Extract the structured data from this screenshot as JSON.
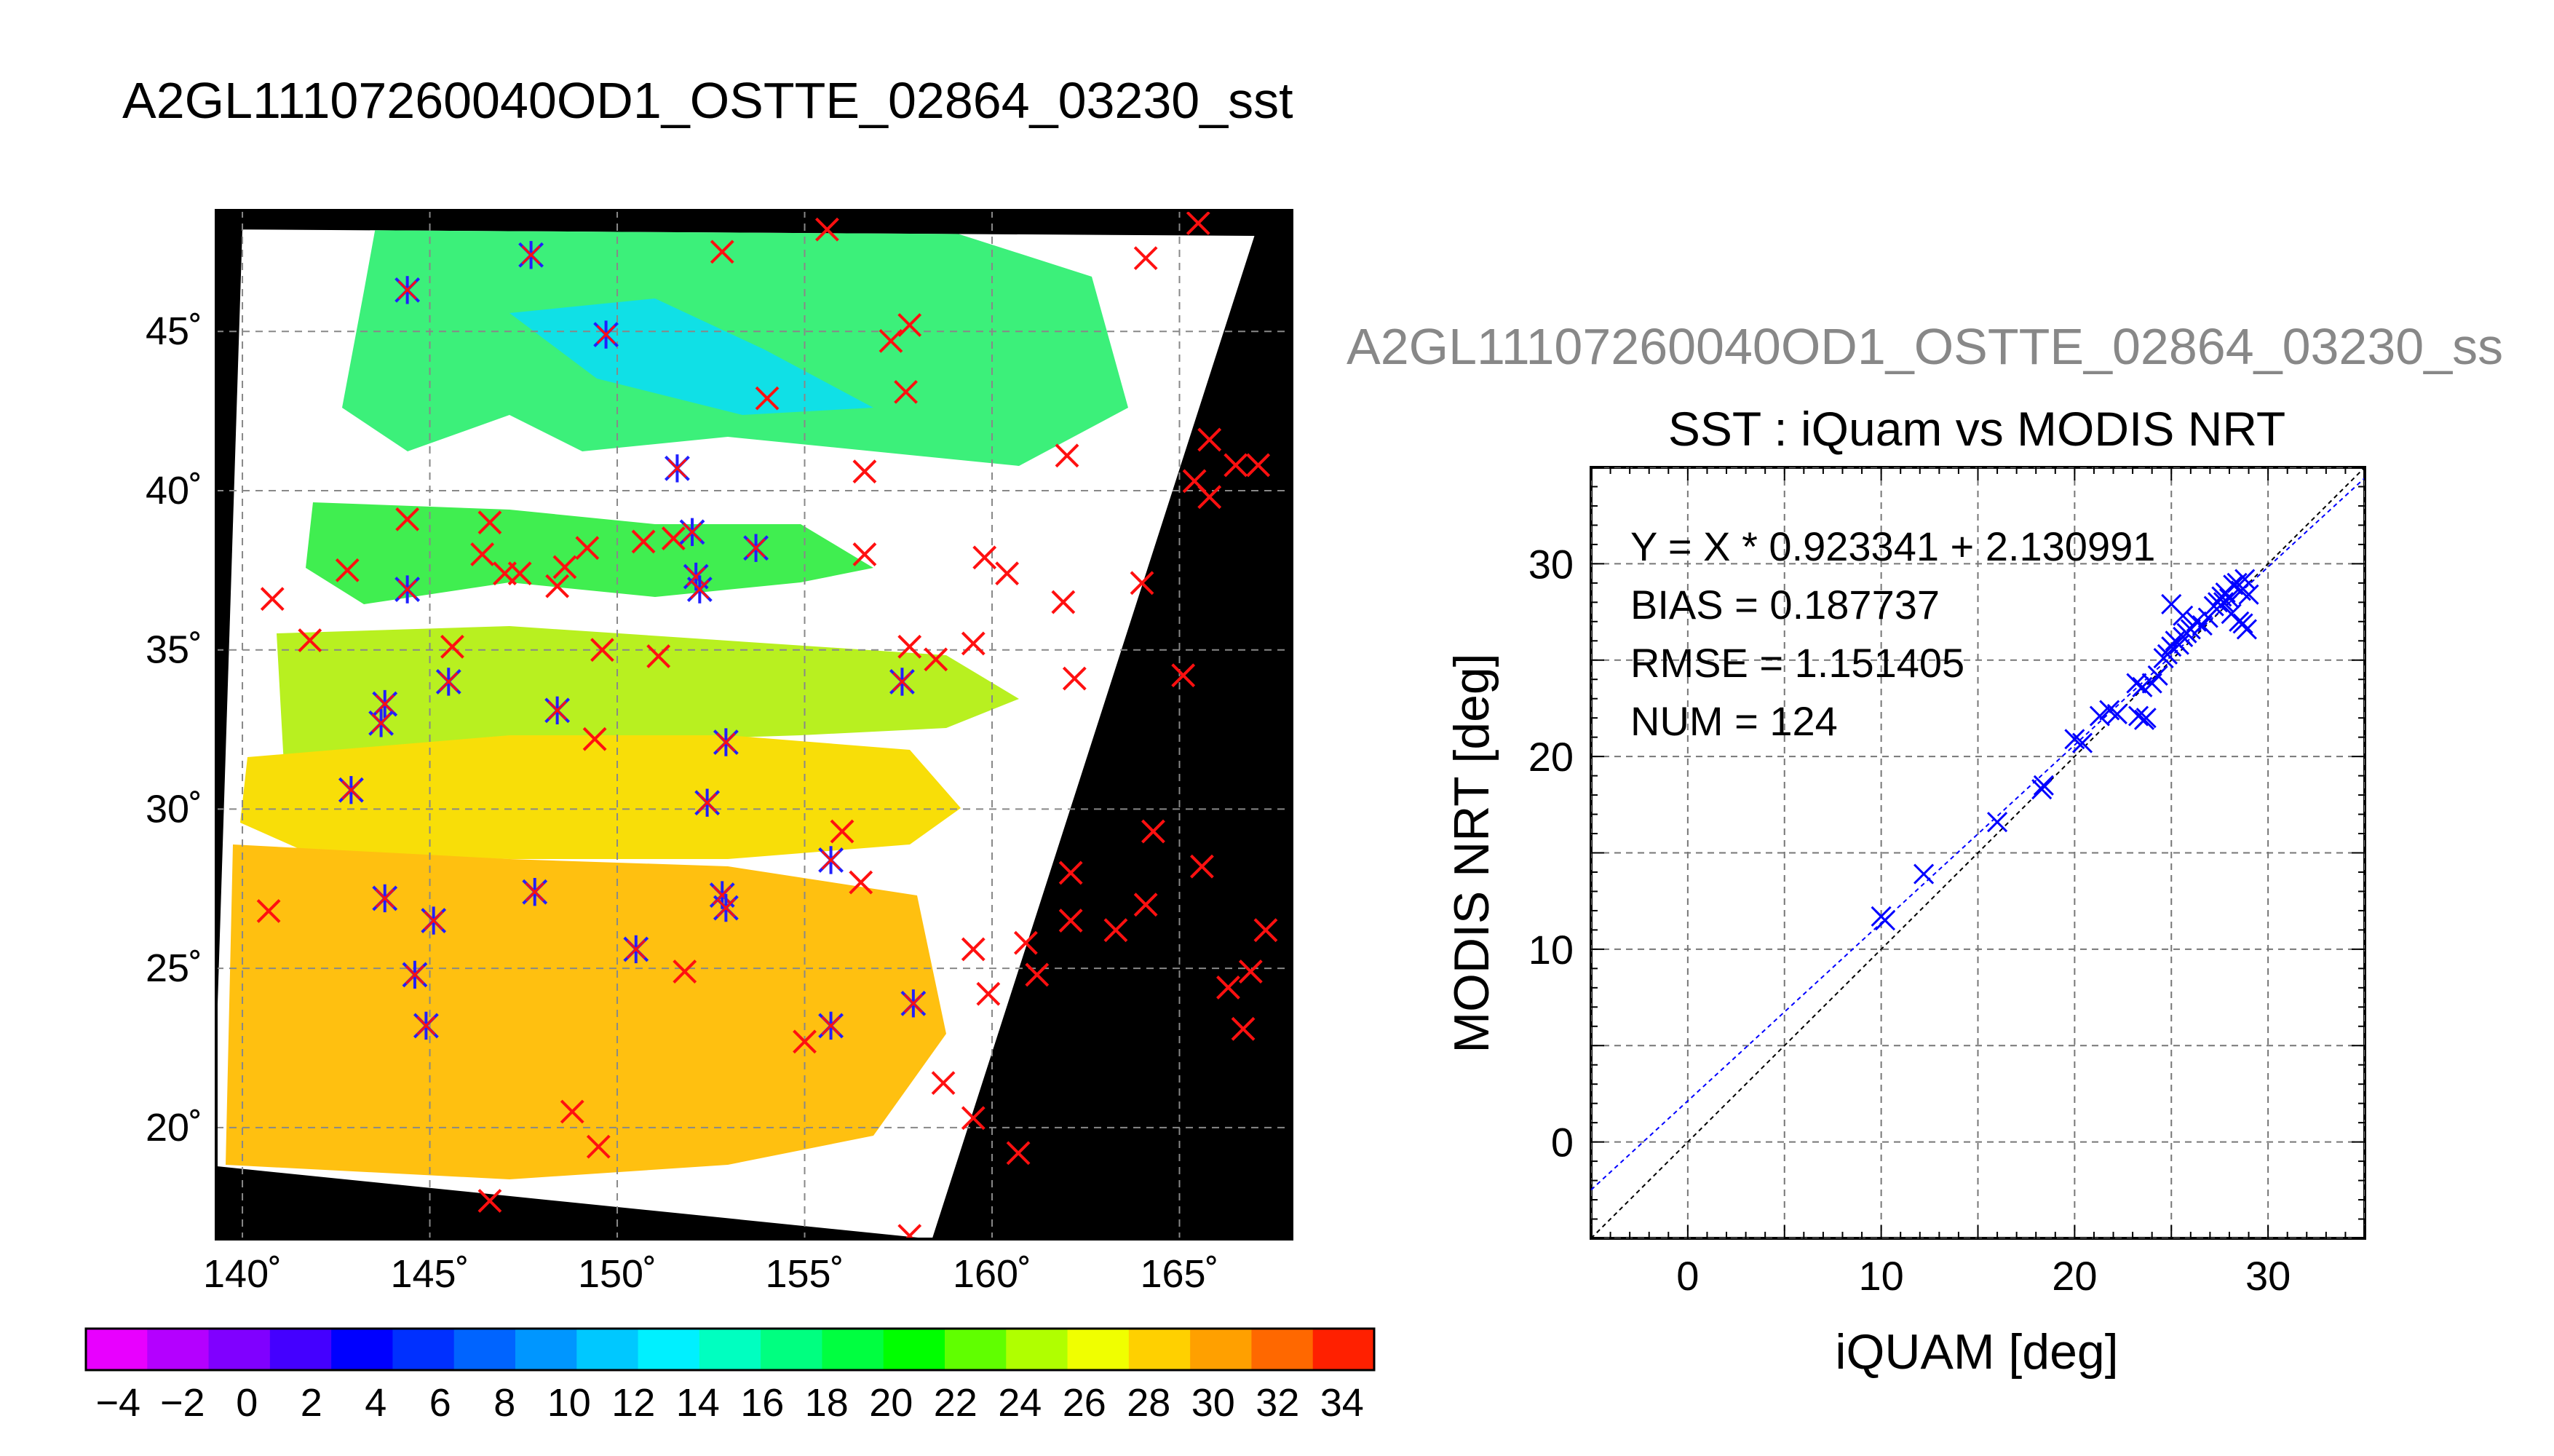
{
  "map_title": "A2GL11107260040OD1_OSTTE_02864_03230_sst",
  "scatter_title_clipped": "A2GL11107260040OD1_OSTTE_02864_03230_ss",
  "chart_data": [
    {
      "type": "map",
      "title": "A2GL11107260040OD1_OSTTE_02864_03230_sst",
      "lon_ticks": [
        140,
        145,
        150,
        155,
        160,
        165
      ],
      "lat_ticks": [
        20,
        25,
        30,
        35,
        40,
        45
      ],
      "lon_tick_labels": [
        "140˚",
        "145˚",
        "150˚",
        "155˚",
        "160˚",
        "165˚"
      ],
      "lat_tick_labels": [
        "20˚",
        "25˚",
        "30˚",
        "35˚",
        "40˚",
        "45˚"
      ],
      "xlim": [
        139.3,
        168.0
      ],
      "ylim": [
        16.5,
        48.8
      ],
      "colorbar": {
        "ticks": [
          -4,
          -2,
          0,
          2,
          4,
          6,
          8,
          10,
          12,
          14,
          16,
          18,
          20,
          22,
          24,
          26,
          28,
          30,
          32,
          34
        ],
        "range": [
          -5,
          35
        ],
        "colors": [
          "#e800ff",
          "#b400ff",
          "#8000ff",
          "#4400ff",
          "#0000ff",
          "#0030ff",
          "#0064ff",
          "#0096ff",
          "#00c8ff",
          "#00f0ff",
          "#00ffc0",
          "#00ff80",
          "#00ff40",
          "#00ff00",
          "#60ff00",
          "#b0ff00",
          "#f0ff00",
          "#ffd000",
          "#ffa000",
          "#ff6800",
          "#ff2000"
        ]
      },
      "buoys_blue_matched": [
        [
          144.4,
          46.3
        ],
        [
          147.7,
          47.4
        ],
        [
          149.7,
          44.9
        ],
        [
          151.6,
          40.7
        ],
        [
          152.0,
          38.7
        ],
        [
          152.1,
          37.3
        ],
        [
          152.2,
          36.9
        ],
        [
          144.4,
          36.9
        ],
        [
          153.7,
          38.2
        ],
        [
          143.8,
          33.3
        ],
        [
          143.7,
          32.7
        ],
        [
          145.5,
          34.0
        ],
        [
          148.4,
          33.1
        ],
        [
          152.9,
          32.1
        ],
        [
          152.4,
          30.2
        ],
        [
          157.6,
          34.0
        ],
        [
          142.9,
          30.6
        ],
        [
          143.8,
          27.2
        ],
        [
          145.1,
          26.5
        ],
        [
          147.8,
          27.4
        ],
        [
          152.8,
          27.3
        ],
        [
          152.9,
          26.9
        ],
        [
          155.7,
          28.4
        ],
        [
          150.5,
          25.6
        ],
        [
          144.6,
          24.8
        ],
        [
          144.9,
          23.2
        ],
        [
          155.7,
          23.2
        ],
        [
          157.9,
          23.9
        ]
      ],
      "buoys_red_unmatched": [
        [
          152.8,
          47.5
        ],
        [
          155.6,
          48.2
        ],
        [
          165.5,
          48.4
        ],
        [
          164.1,
          47.3
        ],
        [
          157.3,
          44.7
        ],
        [
          157.8,
          45.2
        ],
        [
          154.0,
          42.9
        ],
        [
          157.7,
          43.1
        ],
        [
          162.0,
          41.1
        ],
        [
          156.6,
          40.6
        ],
        [
          165.8,
          41.6
        ],
        [
          166.5,
          40.8
        ],
        [
          165.4,
          40.3
        ],
        [
          165.8,
          39.8
        ],
        [
          167.1,
          40.8
        ],
        [
          144.4,
          39.1
        ],
        [
          146.6,
          39.0
        ],
        [
          146.4,
          38.0
        ],
        [
          147.0,
          37.4
        ],
        [
          147.4,
          37.4
        ],
        [
          148.6,
          37.6
        ],
        [
          148.4,
          37.0
        ],
        [
          149.2,
          38.2
        ],
        [
          150.7,
          38.4
        ],
        [
          151.5,
          38.5
        ],
        [
          156.6,
          38.0
        ],
        [
          159.8,
          37.9
        ],
        [
          160.4,
          37.4
        ],
        [
          161.9,
          36.5
        ],
        [
          164.0,
          37.1
        ],
        [
          142.8,
          37.5
        ],
        [
          140.8,
          36.6
        ],
        [
          141.8,
          35.3
        ],
        [
          145.6,
          35.1
        ],
        [
          149.6,
          35.0
        ],
        [
          151.1,
          34.8
        ],
        [
          157.8,
          35.1
        ],
        [
          158.5,
          34.7
        ],
        [
          159.5,
          35.2
        ],
        [
          162.2,
          34.1
        ],
        [
          165.1,
          34.2
        ],
        [
          149.4,
          32.2
        ],
        [
          156.0,
          29.3
        ],
        [
          156.5,
          27.7
        ],
        [
          162.1,
          28.0
        ],
        [
          164.3,
          29.3
        ],
        [
          165.6,
          28.2
        ],
        [
          140.7,
          26.8
        ],
        [
          151.8,
          24.9
        ],
        [
          159.5,
          25.6
        ],
        [
          160.9,
          25.8
        ],
        [
          161.2,
          24.8
        ],
        [
          162.1,
          26.5
        ],
        [
          163.3,
          26.2
        ],
        [
          164.1,
          27.0
        ],
        [
          166.3,
          24.4
        ],
        [
          166.9,
          24.9
        ],
        [
          167.3,
          26.2
        ],
        [
          166.7,
          23.1
        ],
        [
          159.9,
          24.2
        ],
        [
          155.0,
          22.7
        ],
        [
          158.7,
          21.4
        ],
        [
          159.5,
          20.3
        ],
        [
          160.7,
          19.2
        ],
        [
          148.8,
          20.5
        ],
        [
          149.5,
          19.4
        ],
        [
          146.6,
          17.7
        ],
        [
          157.8,
          16.6
        ]
      ],
      "swath_corners": [
        [
          140.0,
          48.2
        ],
        [
          167.0,
          48.0
        ],
        [
          158.4,
          16.5
        ],
        [
          139.2,
          18.8
        ]
      ]
    },
    {
      "type": "scatter",
      "title": "SST : iQuam vs MODIS NRT",
      "xlabel": "iQUAM [deg]",
      "ylabel": "MODIS NRT [deg]",
      "xlim": [
        -5,
        35
      ],
      "ylim": [
        -5,
        35
      ],
      "x_ticks": [
        0,
        10,
        20,
        30
      ],
      "y_ticks": [
        0,
        10,
        20,
        30
      ],
      "grid": true,
      "annotations": [
        "Y = X * 0.923341 + 2.130991",
        "BIAS = 0.187737",
        "RMSE = 1.151405",
        "NUM = 124"
      ],
      "fit_line": {
        "slope": 0.923341,
        "intercept": 2.130991
      },
      "series": [
        {
          "x": [
            10.0,
            10.2,
            12.2,
            16.0,
            18.3,
            18.4,
            20.0,
            20.4,
            21.3,
            21.8,
            22.2,
            23.2,
            23.5,
            23.3,
            23.6,
            23.7,
            24.0,
            24.3,
            24.6,
            24.8,
            25.0,
            25.2,
            25.4,
            25.6,
            25.8,
            26.0,
            26.3,
            26.6,
            26.9,
            27.2,
            27.4,
            27.6,
            27.8,
            28.0,
            28.2,
            28.4,
            28.6,
            28.8,
            29.0,
            27.7,
            28.1,
            28.5,
            28.9,
            28.7,
            25.0,
            25.6
          ],
          "y": [
            11.7,
            11.5,
            13.9,
            16.6,
            18.3,
            18.5,
            20.9,
            20.7,
            22.1,
            22.4,
            22.2,
            23.8,
            23.6,
            22.1,
            21.9,
            22.0,
            23.8,
            24.2,
            25.1,
            25.3,
            25.7,
            26.0,
            25.8,
            26.2,
            26.4,
            26.6,
            27.0,
            26.8,
            27.2,
            27.8,
            28.0,
            28.3,
            28.5,
            28.2,
            28.9,
            29.0,
            28.6,
            29.2,
            28.4,
            28.0,
            27.4,
            27.0,
            26.6,
            26.9,
            27.9,
            27.3
          ]
        }
      ]
    }
  ]
}
